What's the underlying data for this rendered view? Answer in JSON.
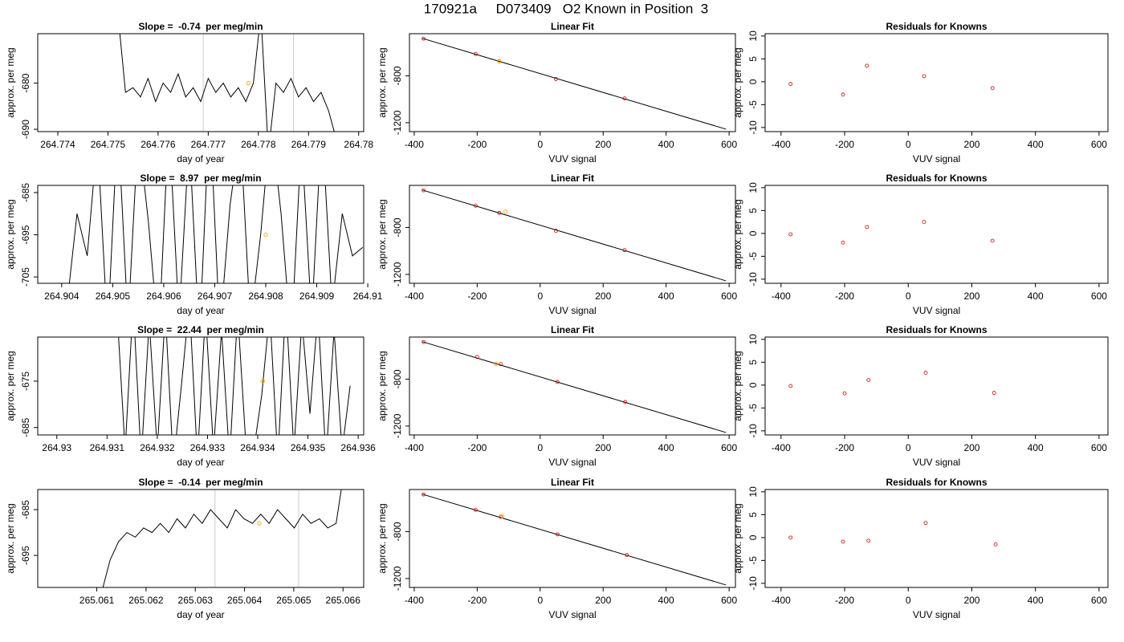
{
  "title": "170921a     D073409   O2 Known in Position  3",
  "chart_data": [
    {
      "type": "line",
      "title": "Slope =  -0.74  per meg/min",
      "xlabel": "day of year",
      "ylabel": "approx. per meg",
      "xlim": [
        264.7736,
        264.7801
      ],
      "xticks": [
        264.774,
        264.775,
        264.776,
        264.777,
        264.778,
        264.779,
        264.78
      ],
      "ylim": [
        -690.5,
        -669.3
      ],
      "yticks": [
        -690,
        -680
      ],
      "x": [
        264.7752,
        264.77535,
        264.7755,
        264.77565,
        264.7758,
        264.77595,
        264.7761,
        264.77625,
        264.7764,
        264.77655,
        264.7767,
        264.77685,
        264.777,
        264.77715,
        264.7773,
        264.77745,
        264.7776,
        264.77775,
        264.7779,
        264.77805,
        264.7782,
        264.77835,
        264.7785,
        264.77865,
        264.7788,
        264.77895,
        264.7791,
        264.77925,
        264.7794,
        264.77955
      ],
      "series": [
        {
          "color": "#000000",
          "values": [
            -665,
            -682,
            -681,
            -683,
            -679,
            -684,
            -680,
            -682,
            -678,
            -683,
            -681,
            -684,
            -679,
            -682,
            -680,
            -683,
            -681,
            -684,
            -680,
            -665,
            -695,
            -680,
            -682,
            -679,
            -683,
            -681,
            -684,
            -682,
            -686,
            -692
          ]
        }
      ],
      "vlines": [
        264.7769,
        264.7787
      ],
      "vline_color": "#cccccc",
      "highlight": {
        "x": 264.7778,
        "y": -680,
        "color": "#ffa500"
      }
    },
    {
      "type": "scatter",
      "title": "Linear Fit",
      "xlabel": "VUV signal",
      "ylabel": "approx. per meg",
      "xlim": [
        -415,
        620
      ],
      "xticks": [
        -400,
        -200,
        0,
        200,
        400,
        600
      ],
      "ylim": [
        -1276,
        -441
      ],
      "yticks": [
        -1200,
        -800
      ],
      "series": [
        {
          "color": "#cc0000",
          "x": [
            -370,
            -205,
            -130,
            50,
            268
          ],
          "values": [
            -483,
            -614,
            -676,
            -828,
            -993
          ]
        }
      ],
      "fit": {
        "x": [
          -375,
          590
        ],
        "values": [
          -480,
          -1255
        ],
        "color": "#000000"
      },
      "highlight": {
        "x": -130,
        "y": -676,
        "color": "#ffa500"
      }
    },
    {
      "type": "scatter",
      "title": "Residuals for Knowns",
      "xlabel": "VUV signal",
      "ylabel": "approx. per meg",
      "xlim": [
        -450,
        628
      ],
      "xticks": [
        -400,
        -200,
        0,
        200,
        400,
        600
      ],
      "ylim": [
        -10.9,
        10.5
      ],
      "yticks": [
        -10,
        -5,
        0,
        5,
        10
      ],
      "series": [
        {
          "color": "#cc0000",
          "x": [
            -370,
            -205,
            -130,
            50,
            265
          ],
          "values": [
            -0.5,
            -2.8,
            3.5,
            1.2,
            -1.4
          ]
        }
      ]
    },
    {
      "type": "line",
      "title": "Slope =  8.97  per meg/min",
      "xlabel": "day of year",
      "ylabel": "approx. per meg",
      "xlim": [
        264.90353,
        264.90992
      ],
      "xticks": [
        264.904,
        264.905,
        264.906,
        264.907,
        264.908,
        264.909,
        264.91
      ],
      "ylim": [
        -706.5,
        -683.3
      ],
      "yticks": [
        -705,
        -695,
        -685
      ],
      "x": [
        264.9041,
        264.9043,
        264.9045,
        264.9047,
        264.9049,
        264.9051,
        264.9053,
        264.9055,
        264.9057,
        264.9059,
        264.9061,
        264.9063,
        264.9065,
        264.9067,
        264.9069,
        264.9071,
        264.9073,
        264.9075,
        264.9077,
        264.9079,
        264.9081,
        264.9083,
        264.9085,
        264.9087,
        264.9089,
        264.9091,
        264.9093,
        264.9095,
        264.9097,
        264.9099
      ],
      "series": [
        {
          "color": "#000000",
          "values": [
            -712,
            -690,
            -700,
            -672,
            -718,
            -668,
            -716,
            -670,
            -692,
            -720,
            -668,
            -715,
            -672,
            -720,
            -665,
            -718,
            -688,
            -670,
            -716,
            -695,
            -668,
            -690,
            -720,
            -672,
            -715,
            -668,
            -712,
            -690,
            -700,
            -698
          ]
        }
      ],
      "highlight": {
        "x": 264.908,
        "y": -695,
        "color": "#ffa500"
      }
    },
    {
      "type": "scatter",
      "title": "Linear Fit",
      "xlabel": "VUV signal",
      "ylabel": "approx. per meg",
      "xlim": [
        -415,
        620
      ],
      "xticks": [
        -400,
        -200,
        0,
        200,
        400,
        600
      ],
      "ylim": [
        -1276,
        -441
      ],
      "yticks": [
        -1200,
        -800
      ],
      "series": [
        {
          "color": "#cc0000",
          "x": [
            -370,
            -205,
            -130,
            50,
            268
          ],
          "values": [
            -483,
            -614,
            -676,
            -828,
            -993
          ]
        }
      ],
      "fit": {
        "x": [
          -375,
          590
        ],
        "values": [
          -480,
          -1255
        ],
        "color": "#000000"
      },
      "highlight": {
        "x": -110,
        "y": -665,
        "color": "#ffa500"
      }
    },
    {
      "type": "scatter",
      "title": "Residuals for Knowns",
      "xlabel": "VUV signal",
      "ylabel": "approx. per meg",
      "xlim": [
        -450,
        628
      ],
      "xticks": [
        -400,
        -200,
        0,
        200,
        400,
        600
      ],
      "ylim": [
        -10.9,
        10.5
      ],
      "yticks": [
        -10,
        -5,
        0,
        5,
        10
      ],
      "series": [
        {
          "color": "#cc0000",
          "x": [
            -370,
            -205,
            -130,
            50,
            265
          ],
          "values": [
            -0.2,
            -2,
            1.4,
            2.5,
            -1.6
          ]
        }
      ]
    },
    {
      "type": "line",
      "title": "Slope =  22.44  per meg/min",
      "xlabel": "day of year",
      "ylabel": "approx. per meg",
      "xlim": [
        264.92962,
        264.93611
      ],
      "xticks": [
        264.93,
        264.931,
        264.932,
        264.933,
        264.934,
        264.935,
        264.936
      ],
      "ylim": [
        -686.6,
        -665.5
      ],
      "yticks": [
        -685,
        -675
      ],
      "x": [
        264.9312,
        264.93136,
        264.93152,
        264.93168,
        264.93184,
        264.932,
        264.93216,
        264.93232,
        264.93248,
        264.93264,
        264.9328,
        264.93296,
        264.93312,
        264.93328,
        264.93344,
        264.9336,
        264.93376,
        264.93392,
        264.93408,
        264.93424,
        264.9344,
        264.93456,
        264.93472,
        264.93488,
        264.93504,
        264.9352,
        264.93536,
        264.93552,
        264.93568,
        264.93584
      ],
      "series": [
        {
          "color": "#000000",
          "values": [
            -660,
            -690,
            -658,
            -692,
            -662,
            -690,
            -660,
            -693,
            -676,
            -658,
            -692,
            -660,
            -690,
            -664,
            -692,
            -660,
            -688,
            -690,
            -678,
            -660,
            -692,
            -658,
            -690,
            -662,
            -682,
            -660,
            -692,
            -664,
            -690,
            -676
          ]
        }
      ],
      "highlight": {
        "x": 264.9341,
        "y": -675,
        "color": "#ffa500"
      }
    },
    {
      "type": "scatter",
      "title": "Linear Fit",
      "xlabel": "VUV signal",
      "ylabel": "approx. per meg",
      "xlim": [
        -415,
        620
      ],
      "xticks": [
        -400,
        -200,
        0,
        200,
        400,
        600
      ],
      "ylim": [
        -1276,
        -441
      ],
      "yticks": [
        -1200,
        -800
      ],
      "series": [
        {
          "color": "#cc0000",
          "x": [
            -370,
            -200,
            -125,
            55,
            270
          ],
          "values": [
            -483,
            -611,
            -672,
            -824,
            -995
          ]
        }
      ],
      "fit": {
        "x": [
          -375,
          590
        ],
        "values": [
          -480,
          -1255
        ],
        "color": "#000000"
      },
      "highlight": {
        "x": -140,
        "y": -670,
        "color": "#ffa500"
      }
    },
    {
      "type": "scatter",
      "title": "Residuals for Knowns",
      "xlabel": "VUV signal",
      "ylabel": "approx. per meg",
      "xlim": [
        -450,
        628
      ],
      "xticks": [
        -400,
        -200,
        0,
        200,
        400,
        600
      ],
      "ylim": [
        -10.9,
        10.5
      ],
      "yticks": [
        -10,
        -5,
        0,
        5,
        10
      ],
      "series": [
        {
          "color": "#cc0000",
          "x": [
            -370,
            -200,
            -125,
            55,
            270
          ],
          "values": [
            -0.2,
            -1.8,
            1.1,
            2.7,
            -1.7
          ]
        }
      ]
    },
    {
      "type": "line",
      "title": "Slope =  -0.14  per meg/min",
      "xlabel": "day of year",
      "ylabel": "approx. per meg",
      "xlim": [
        265.0598,
        265.06642
      ],
      "xticks": [
        265.061,
        265.062,
        265.063,
        265.064,
        265.065,
        265.066
      ],
      "ylim": [
        -702,
        -680.6
      ],
      "yticks": [
        -695,
        -685
      ],
      "x": [
        265.0611,
        265.06127,
        265.06144,
        265.06161,
        265.06178,
        265.06195,
        265.06212,
        265.06229,
        265.06246,
        265.06263,
        265.0628,
        265.06297,
        265.06314,
        265.06331,
        265.06348,
        265.06365,
        265.06382,
        265.06399,
        265.06416,
        265.06433,
        265.0645,
        265.06467,
        265.06484,
        265.06501,
        265.06518,
        265.06535,
        265.06552,
        265.06569,
        265.06586,
        265.06603
      ],
      "series": [
        {
          "color": "#000000",
          "values": [
            -703,
            -696,
            -692,
            -690,
            -691,
            -689,
            -690,
            -688,
            -690,
            -687,
            -689,
            -686,
            -688,
            -685,
            -687,
            -689,
            -685,
            -687,
            -688,
            -686,
            -688,
            -685,
            -687,
            -689,
            -686,
            -688,
            -687,
            -689,
            -688,
            -676
          ]
        }
      ],
      "vlines": [
        265.0634,
        265.0651
      ],
      "vline_color": "#cccccc",
      "highlight": {
        "x": 265.0643,
        "y": -688,
        "color": "#ffa500"
      }
    },
    {
      "type": "scatter",
      "title": "Linear Fit",
      "xlabel": "VUV signal",
      "ylabel": "approx. per meg",
      "xlim": [
        -415,
        620
      ],
      "xticks": [
        -400,
        -200,
        0,
        200,
        400,
        600
      ],
      "ylim": [
        -1276,
        -441
      ],
      "yticks": [
        -1200,
        -800
      ],
      "series": [
        {
          "color": "#cc0000",
          "x": [
            -370,
            -205,
            -125,
            55,
            275
          ],
          "values": [
            -483,
            -614,
            -673,
            -824,
            -999
          ]
        }
      ],
      "fit": {
        "x": [
          -375,
          590
        ],
        "values": [
          -480,
          -1255
        ],
        "color": "#000000"
      },
      "highlight": {
        "x": -120,
        "y": -668,
        "color": "#ffa500"
      }
    },
    {
      "type": "scatter",
      "title": "Residuals for Knowns",
      "xlabel": "VUV signal",
      "ylabel": "approx. per meg",
      "xlim": [
        -450,
        628
      ],
      "xticks": [
        -400,
        -200,
        0,
        200,
        400,
        600
      ],
      "ylim": [
        -10.9,
        10.5
      ],
      "yticks": [
        -10,
        -5,
        0,
        5,
        10
      ],
      "series": [
        {
          "color": "#cc0000",
          "x": [
            -370,
            -205,
            -125,
            55,
            275
          ],
          "values": [
            0,
            -0.9,
            -0.7,
            3.2,
            -1.5
          ]
        }
      ]
    }
  ]
}
